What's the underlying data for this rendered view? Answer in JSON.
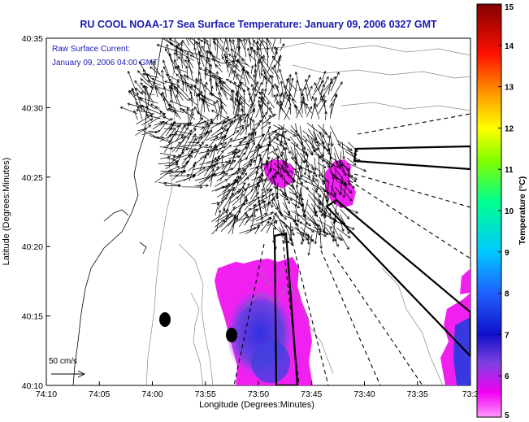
{
  "chart_data": {
    "type": "heatmap",
    "title": "RU COOL  NOAA-17  Sea Surface Temperature:  January 09, 2006 0327 GMT",
    "annotation_line1": "Raw Surface Current:",
    "annotation_line2": "January 09, 2006 04:00 GMT",
    "xlabel": "Longitude (Degrees:Minutes)",
    "ylabel": "Latitude (Degrees:Minutes)",
    "x_ticks": [
      "74:10",
      "74:05",
      "74:00",
      "73:55",
      "73:50",
      "73:45",
      "73:40",
      "73:35",
      "73:3"
    ],
    "y_ticks": [
      "40:35",
      "40:30",
      "40:25",
      "40:20",
      "40:15",
      "40:10"
    ],
    "colorbar": {
      "label": "Temperature (°C)",
      "ticks": [
        "15",
        "14",
        "13",
        "12",
        "11",
        "10",
        "9",
        "8",
        "7",
        "6",
        "5"
      ],
      "range": [
        5,
        15
      ]
    },
    "scale_label": "50 cm/s",
    "markers": [
      {
        "lon": -73.985,
        "lat": 40.243
      },
      {
        "lon": -73.908,
        "lat": 40.225
      }
    ],
    "colors": {
      "sst_magenta": "#f01ef0",
      "sst_purple": "#8c3cdc",
      "sst_blue": "#3c3cf0",
      "title_text": "#1a1ab4"
    }
  }
}
